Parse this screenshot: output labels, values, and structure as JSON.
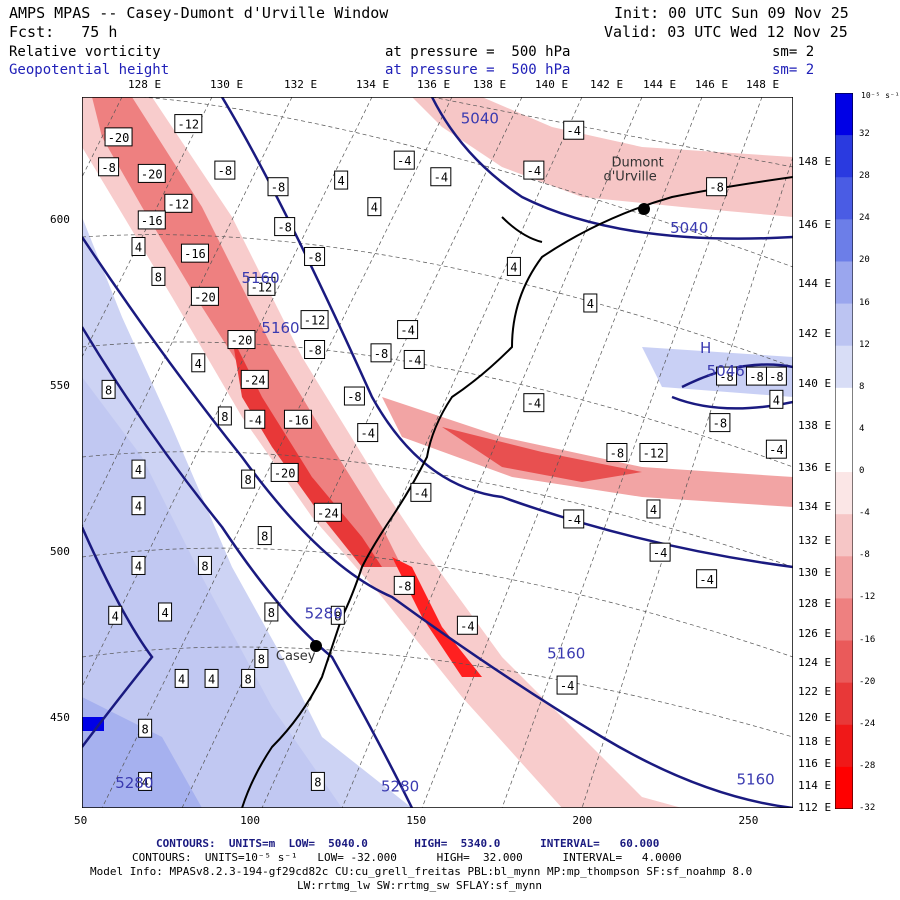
{
  "header": {
    "model_title": "AMPS MPAS -- Casey-Dumont d'Urville Window",
    "init": "Init: 00 UTC Sun 09 Nov 25",
    "forecast": "Fcst:   75 h",
    "valid": "Valid: 03 UTC Wed 12 Nov 25"
  },
  "fields": [
    {
      "name": "Relative vorticity",
      "level": "at pressure =  500 hPa",
      "smooth": "sm= 2",
      "color": "#000000"
    },
    {
      "name": "Geopotential height",
      "level": "at pressure =  500 hPa",
      "smooth": "sm= 2",
      "color": "#2020b8"
    }
  ],
  "lon_labels_top": [
    "128 E",
    "130 E",
    "132 E",
    "134 E",
    "136 E",
    "138 E",
    "140 E",
    "142 E",
    "144 E",
    "146 E",
    "148 E"
  ],
  "lon_labels_right": [
    "148 E",
    "146 E",
    "144 E",
    "142 E",
    "140 E",
    "138 E",
    "136 E",
    "134 E",
    "132 E",
    "130 E",
    "128 E",
    "126 E",
    "124 E",
    "122 E",
    "120 E",
    "118 E",
    "116 E",
    "114 E",
    "112 E"
  ],
  "x_axis": {
    "ticks": [
      "50",
      "100",
      "150",
      "200",
      "250"
    ],
    "values": [
      50,
      100,
      150,
      200,
      250
    ],
    "range": [
      50,
      264
    ]
  },
  "y_axis": {
    "ticks": [
      "450",
      "500",
      "550",
      "600"
    ],
    "values": [
      450,
      500,
      550,
      600
    ],
    "range": [
      423,
      637
    ]
  },
  "colorbar": {
    "unit": "10⁻⁵ s⁻¹",
    "labels": [
      "32",
      "28",
      "24",
      "20",
      "16",
      "12",
      "8",
      "4",
      "0",
      "-4",
      "-8",
      "-12",
      "-16",
      "-20",
      "-24",
      "-28",
      "-32"
    ],
    "colors": [
      "#0000e6",
      "#2a3ae0",
      "#4a5ce4",
      "#6c7ee8",
      "#9aa6ee",
      "#bcc4f2",
      "#d8ddf6",
      "#ffffff",
      "#ffffff",
      "#fbe6e6",
      "#f6c6c6",
      "#f2a4a4",
      "#ee8080",
      "#ea5a5a",
      "#e83838",
      "#f01818",
      "#ff0000"
    ]
  },
  "stations": [
    {
      "name": "Casey",
      "x": 118,
      "y": 473
    },
    {
      "name": "Dumont\nd'Urville",
      "x": 219,
      "y": 604
    }
  ],
  "height_labels": [
    {
      "text": "5040",
      "x": 164,
      "y": 629
    },
    {
      "text": "5040",
      "x": 227,
      "y": 596
    },
    {
      "text": "5160",
      "x": 98,
      "y": 581
    },
    {
      "text": "5160",
      "x": 104,
      "y": 566
    },
    {
      "text": "5160",
      "x": 190,
      "y": 468
    },
    {
      "text": "5160",
      "x": 247,
      "y": 430
    },
    {
      "text": "5280",
      "x": 117,
      "y": 480
    },
    {
      "text": "5280",
      "x": 140,
      "y": 428
    },
    {
      "text": "5280",
      "x": 60,
      "y": 429
    },
    {
      "text": "H",
      "x": 236,
      "y": 560
    },
    {
      "text": "5046",
      "x": 238,
      "y": 553
    }
  ],
  "vorticity_labels": [
    {
      "text": "-20",
      "x": 61,
      "y": 625
    },
    {
      "text": "-12",
      "x": 82,
      "y": 629
    },
    {
      "text": "-8",
      "x": 58,
      "y": 616
    },
    {
      "text": "-20",
      "x": 71,
      "y": 614
    },
    {
      "text": "-12",
      "x": 79,
      "y": 605
    },
    {
      "text": "-16",
      "x": 71,
      "y": 600
    },
    {
      "text": "-8",
      "x": 93,
      "y": 615
    },
    {
      "text": "-8",
      "x": 109,
      "y": 610
    },
    {
      "text": "-8",
      "x": 111,
      "y": 598
    },
    {
      "text": "-16",
      "x": 84,
      "y": 590
    },
    {
      "text": "-20",
      "x": 87,
      "y": 577
    },
    {
      "text": "-12",
      "x": 104,
      "y": 580
    },
    {
      "text": "-8",
      "x": 120,
      "y": 589
    },
    {
      "text": "-12",
      "x": 120,
      "y": 570
    },
    {
      "text": "-20",
      "x": 98,
      "y": 564
    },
    {
      "text": "-8",
      "x": 120,
      "y": 561
    },
    {
      "text": "-24",
      "x": 102,
      "y": 552
    },
    {
      "text": "-8",
      "x": 132,
      "y": 547
    },
    {
      "text": "-4",
      "x": 102,
      "y": 540
    },
    {
      "text": "-16",
      "x": 115,
      "y": 540
    },
    {
      "text": "-4",
      "x": 136,
      "y": 536
    },
    {
      "text": "-20",
      "x": 111,
      "y": 524
    },
    {
      "text": "-4",
      "x": 152,
      "y": 518
    },
    {
      "text": "-24",
      "x": 124,
      "y": 512
    },
    {
      "text": "-8",
      "x": 140,
      "y": 560
    },
    {
      "text": "-4",
      "x": 150,
      "y": 558
    },
    {
      "text": "-4",
      "x": 148,
      "y": 567
    },
    {
      "text": "-8",
      "x": 147,
      "y": 490
    },
    {
      "text": "-4",
      "x": 166,
      "y": 478
    },
    {
      "text": "-4",
      "x": 147,
      "y": 618
    },
    {
      "text": "-4",
      "x": 158,
      "y": 613
    },
    {
      "text": "-4",
      "x": 186,
      "y": 615
    },
    {
      "text": "-4",
      "x": 198,
      "y": 627
    },
    {
      "text": "-8",
      "x": 241,
      "y": 610
    },
    {
      "text": "-4",
      "x": 186,
      "y": 545
    },
    {
      "text": "-8",
      "x": 242,
      "y": 539
    },
    {
      "text": "-8",
      "x": 211,
      "y": 530
    },
    {
      "text": "-12",
      "x": 222,
      "y": 530
    },
    {
      "text": "-4",
      "x": 259,
      "y": 531
    },
    {
      "text": "-4",
      "x": 198,
      "y": 510
    },
    {
      "text": "-4",
      "x": 224,
      "y": 500
    },
    {
      "text": "-4",
      "x": 238,
      "y": 492
    },
    {
      "text": "-4",
      "x": 196,
      "y": 460
    },
    {
      "text": "-8",
      "x": 259,
      "y": 553
    },
    {
      "text": "-8",
      "x": 244,
      "y": 553
    },
    {
      "text": "-8",
      "x": 253,
      "y": 553
    }
  ],
  "pos_labels": [
    {
      "text": "4",
      "x": 128,
      "y": 612
    },
    {
      "text": "4",
      "x": 138,
      "y": 604
    },
    {
      "text": "4",
      "x": 67,
      "y": 592
    },
    {
      "text": "8",
      "x": 73,
      "y": 583
    },
    {
      "text": "4",
      "x": 180,
      "y": 586
    },
    {
      "text": "4",
      "x": 203,
      "y": 575
    },
    {
      "text": "4",
      "x": 85,
      "y": 557
    },
    {
      "text": "8",
      "x": 58,
      "y": 549
    },
    {
      "text": "8",
      "x": 93,
      "y": 541
    },
    {
      "text": "4",
      "x": 67,
      "y": 525
    },
    {
      "text": "4",
      "x": 67,
      "y": 514
    },
    {
      "text": "8",
      "x": 100,
      "y": 522
    },
    {
      "text": "8",
      "x": 105,
      "y": 505
    },
    {
      "text": "4",
      "x": 67,
      "y": 496
    },
    {
      "text": "8",
      "x": 87,
      "y": 496
    },
    {
      "text": "4",
      "x": 60,
      "y": 481
    },
    {
      "text": "4",
      "x": 75,
      "y": 482
    },
    {
      "text": "8",
      "x": 107,
      "y": 482
    },
    {
      "text": "8",
      "x": 104,
      "y": 468
    },
    {
      "text": "8",
      "x": 127,
      "y": 481
    },
    {
      "text": "8",
      "x": 100,
      "y": 462
    },
    {
      "text": "4",
      "x": 80,
      "y": 462
    },
    {
      "text": "4",
      "x": 89,
      "y": 462
    },
    {
      "text": "8",
      "x": 69,
      "y": 447
    },
    {
      "text": "4",
      "x": 69,
      "y": 431
    },
    {
      "text": "8",
      "x": 121,
      "y": 431
    },
    {
      "text": "4",
      "x": 222,
      "y": 513
    },
    {
      "text": "4",
      "x": 259,
      "y": 546
    }
  ],
  "footer": {
    "contours1": "CONTOURS:  UNITS=m  LOW=  5040.0       HIGH=  5340.0      INTERVAL=   60.000",
    "contours2": "CONTOURS:  UNITS=10⁻⁵ s⁻¹   LOW= -32.000      HIGH=  32.000      INTERVAL=   4.0000",
    "model_info": "Model Info: MPASv8.2.3-194-gf29cd82c CU:cu_grell_freitas PBL:bl_mynn MP:mp_thompson SF:sf_noahmp 8.0",
    "model_info2": "LW:rrtmg_lw SW:rrtmg_sw SFLAY:sf_mynn"
  }
}
